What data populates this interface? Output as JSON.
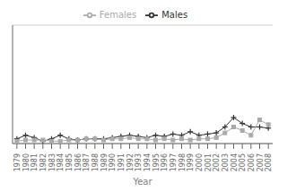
{
  "chart_data": {
    "type": "line",
    "x": [
      1979,
      1980,
      1981,
      1982,
      1983,
      1984,
      1985,
      1986,
      1987,
      1988,
      1989,
      1990,
      1991,
      1992,
      1993,
      1994,
      1995,
      1996,
      1997,
      1998,
      1999,
      2000,
      2001,
      2002,
      2003,
      2004,
      2005,
      2006,
      2007,
      2008
    ],
    "series": [
      {
        "name": "Males",
        "color": "#333333",
        "marker": "plus",
        "values": [
          4,
          7,
          5,
          2,
          4,
          7,
          4,
          3,
          4,
          4,
          4,
          5,
          6,
          7,
          6,
          5,
          7,
          6,
          8,
          7,
          10,
          7,
          8,
          9,
          14,
          22,
          17,
          14,
          14,
          13
        ]
      },
      {
        "name": "Females",
        "color": "#aaaaaa",
        "marker": "square",
        "values": [
          2,
          3,
          3,
          3,
          2,
          2,
          3,
          3,
          4,
          4,
          3,
          4,
          4,
          5,
          4,
          4,
          3,
          4,
          3,
          4,
          3,
          4,
          4,
          5,
          9,
          14,
          11,
          7,
          20,
          16
        ]
      }
    ],
    "xlabel": "Year",
    "xlim": [
      1978.5,
      2008.5
    ],
    "xticks": [
      1979,
      1980,
      1981,
      1982,
      1983,
      1984,
      1985,
      1986,
      1987,
      1988,
      1989,
      1990,
      1991,
      1992,
      1993,
      1994,
      1995,
      1996,
      1997,
      1998,
      1999,
      2000,
      2001,
      2002,
      2003,
      2004,
      2005,
      2006,
      2007,
      2008
    ],
    "ylim": [
      0,
      100
    ],
    "yticks": [
      0,
      10,
      20,
      30,
      40,
      50,
      60,
      70,
      80,
      90,
      100
    ],
    "grid": true,
    "legend": "top",
    "tick_labels": "x"
  }
}
